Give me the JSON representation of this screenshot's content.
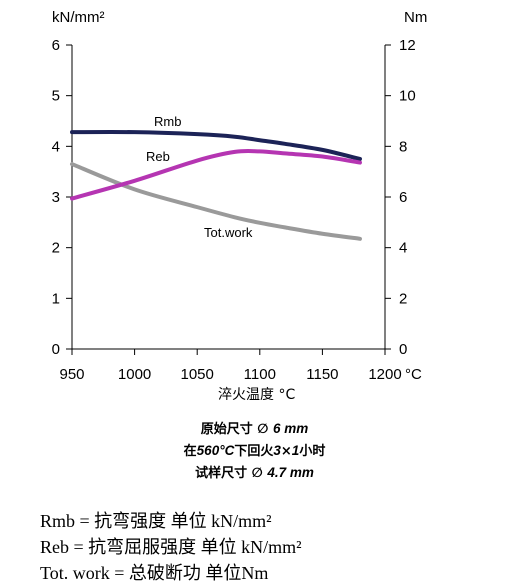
{
  "chart_data": {
    "type": "line",
    "x": [
      950,
      1000,
      1050,
      1080,
      1100,
      1120,
      1150,
      1180
    ],
    "xlim": [
      950,
      1200
    ],
    "x_ticks": [
      "950",
      "1000",
      "1050",
      "1100",
      "1150",
      "1200"
    ],
    "x_tick_values": [
      950,
      1000,
      1050,
      1100,
      1150,
      1200
    ],
    "x_unit": "°C",
    "xlabel": "淬火温度  °C",
    "left_axis": {
      "unit_label": "kN/mm²",
      "ylim": [
        0,
        6
      ],
      "ticks": [
        "0",
        "1",
        "2",
        "3",
        "4",
        "5",
        "6"
      ]
    },
    "right_axis": {
      "unit_label": "Nm",
      "ylim": [
        0,
        12
      ],
      "ticks": [
        "0",
        "2",
        "4",
        "6",
        "8",
        "10",
        "12"
      ]
    },
    "series": [
      {
        "name": "Rmb",
        "axis": "left",
        "color": "#1c2357",
        "values": [
          4.28,
          4.28,
          4.24,
          4.19,
          4.12,
          4.05,
          3.93,
          3.75
        ]
      },
      {
        "name": "Reb",
        "axis": "left",
        "color": "#b535b2",
        "values": [
          2.97,
          3.32,
          3.72,
          3.89,
          3.9,
          3.86,
          3.8,
          3.68
        ]
      },
      {
        "name": "Tot.work",
        "axis": "right",
        "color": "#9a9a9a",
        "values": [
          7.3,
          6.3,
          5.6,
          5.2,
          4.98,
          4.8,
          4.55,
          4.35
        ]
      }
    ],
    "grid": false,
    "legend": "inline labels"
  },
  "notes": {
    "line1_prefix": "原始尺寸  ∅ ",
    "line1_value": "6 mm",
    "line2_a": "在",
    "line2_temp": "560°C",
    "line2_b": "下回火",
    "line2_n1": "3",
    "line2_x": "×",
    "line2_n2": "1",
    "line2_c": "小时",
    "line3_prefix": "试样尺寸  ∅ ",
    "line3_value": "4.7 mm"
  },
  "legend_text": {
    "rmb": "Rmb =  抗弯强度  单位  kN/mm²",
    "reb": "Reb =   抗弯屈服强度  单位  kN/mm²",
    "tot": "Tot. work = 总破断功  单位Nm"
  }
}
